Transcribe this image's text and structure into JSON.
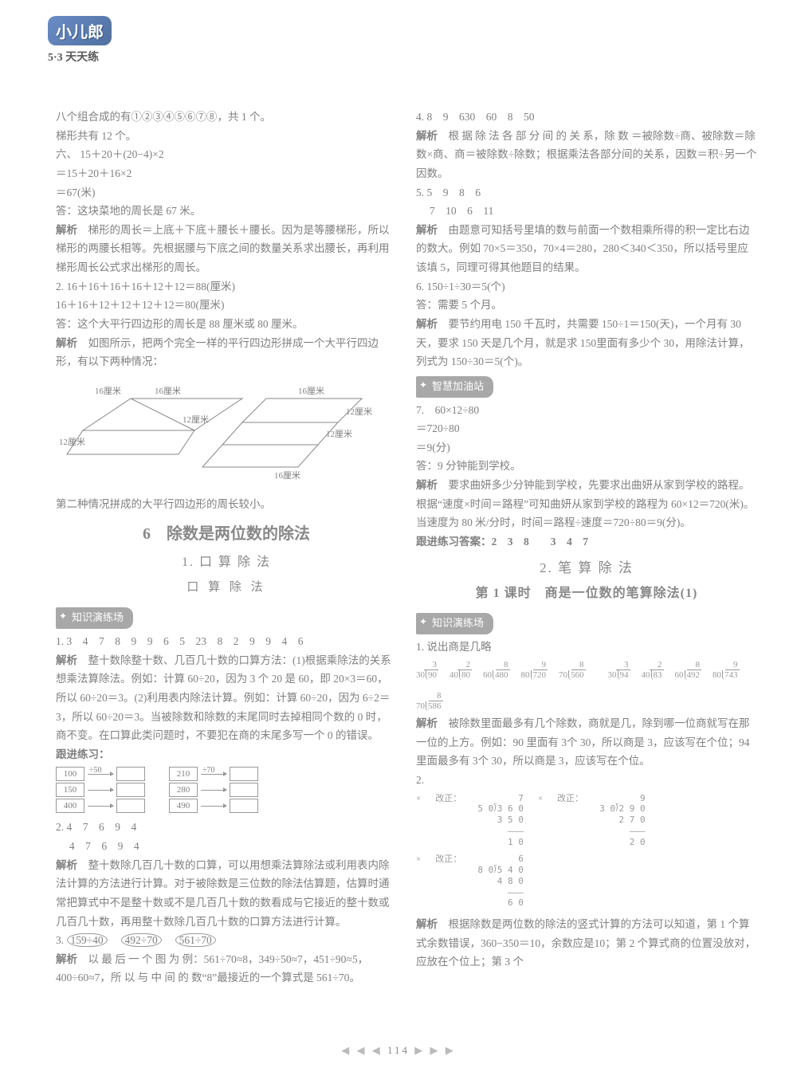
{
  "logo": {
    "brand": "小儿郎",
    "series": "5·3 天天练"
  },
  "left": {
    "p1": "八个组合成的有①②③④⑤⑥⑦⑧，共 1 个。",
    "p2": "梯形共有 12 个。",
    "six_label": "六、",
    "calc1": "15＋20＋(20−4)×2",
    "calc2": "＝15＋20＋16×2",
    "calc3": "＝67(米)",
    "ans1": "答：这块菜地的周长是 67 米。",
    "analyse1a": "解析",
    "analyse1b": "　梯形的周长＝上底＋下底＋腰长＋腰长。因为是等腰梯形，所以梯形的两腰长相等。先根据腰与下底之间的数量关系求出腰长，再利用梯形周长公式求出梯形的周长。",
    "calc4": "2. 16＋16＋16＋16＋12＋12＝88(厘米)",
    "calc5": "16＋16＋12＋12＋12＋12＝80(厘米)",
    "ans2": "答：这个大平行四边形的周长是 88 厘米或 80 厘米。",
    "analyse2a": "解析",
    "analyse2b": "　如图所示，把两个完全一样的平行四边形拼成一个大平行四边形，有以下两种情况：",
    "diag_labels": {
      "a": "16厘米",
      "b": "12厘米"
    },
    "p_after_diag": "第二种情况拼成的大平行四边形的周长较小。",
    "sec6_num": "6",
    "sec6_title": "除数是两位数的除法",
    "sec6_sub1": "1. 口 算 除 法",
    "sec6_sub2": "口 算 除 法",
    "tag1": "知识演练场",
    "q1": "1. 3　4　7　8　9　9　6　5　23　8　2　9　9　4　6",
    "a1a": "解析",
    "a1b": "　整十数除整十数、几百几十数的口算方法：(1)根据乘除法的关系想乘法算除法。例如：计算 60÷20，因为 3 个 20 是 60，即 20×3＝60，所以 60÷20＝3。(2)利用表内除法计算。例如：计算 60÷20，因为 6÷2＝3，所以 60÷20＝3。当被除数和除数的末尾同时去掉相同个数的 0 时，商不变。在口算此类问题时，不要犯在商的末尾多写一个 0 的错误。",
    "follow": "跟进练习：",
    "flow": {
      "div1": "÷50",
      "div2": "÷70",
      "l": [
        "100",
        "150",
        "400"
      ],
      "r": [
        "210",
        "280",
        "490"
      ]
    },
    "q2a": "2. 4　7　6　9　4",
    "q2b": "　 4　7　6　9　4",
    "a2a": "解析",
    "a2b": "　整十数除几百几十数的口算，可以用想乘法算除法或利用表内除法计算的方法进行计算。对于被除数是三位数的除法估算题，估算时通常把算式中不是整十数或不是几百几十数的数看成与它接近的整十数或几百几十数，再用整十数除几百几十数的口算方法进行计算。",
    "q3": "3. ",
    "q3_items": [
      "159÷40",
      "492÷70",
      "561÷70"
    ],
    "a3a": "解析",
    "a3b": "　以 最 后 一 个 图 为 例：561÷70≈8，349÷50≈7，451÷90≈5，400÷60≈7，所 以 与 中 间 的 数“8”最接近的一个算式是 561÷70。"
  },
  "right": {
    "q4": "4. 8　9　630　60　8　50",
    "a4a": "解析",
    "a4b": "　根 据 除 法 各 部 分 间 的 关 系，除 数 ＝被除数÷商、被除数＝除数×商、商＝被除数÷除数；根据乘法各部分间的关系，因数＝积÷另一个因数。",
    "q5a": "5. 5　9　8　6",
    "q5b": "　 7　10　6　11",
    "a5a": "解析",
    "a5b": "　由题意可知括号里填的数与前面一个数相乘所得的积一定比右边的数大。例如 70×5＝350，70×4＝280，280＜340＜350，所以括号里应该填 5，同理可得其他题目的结果。",
    "q6a": "6. 150÷1÷30＝5(个)",
    "q6b": "答：需要 5 个月。",
    "a6a": "解析",
    "a6b": "　要节约用电 150 千瓦时，共需要 150÷1＝150(天)，一个月有 30 天，要求 150 天是几个月，就是求 150里面有多少个 30，用除法计算，列式为 150÷30＝5(个)。",
    "tag2": "智慧加油站",
    "q7a": "7.　60×12÷80",
    "q7b": "＝720÷80",
    "q7c": "＝9(分)",
    "q7d": "答：9 分钟能到学校。",
    "a7a": "解析",
    "a7b": "　要求曲妍多少分钟能到学校，先要求出曲妍从家到学校的路程。根据“速度×时间＝路程”可知曲妍从家到学校的路程为 60×12＝720(米)。当速度为 80 米/分时，时间＝路程÷速度＝720÷80＝9(分)。",
    "followans": "跟进练习答案：2　3　8　　3　4　7",
    "sec_sub2": "2. 笔 算 除 法",
    "lesson": "第 1 课时　商是一位数的笔算除法(1)",
    "tag3": "知识演练场",
    "q1r": "1. 说出商是几略",
    "ldivs": [
      {
        "dvs": "30",
        "dvd": "90",
        "q": "3"
      },
      {
        "dvs": "40",
        "dvd": "80",
        "q": "2"
      },
      {
        "dvs": "60",
        "dvd": "480",
        "q": "8"
      },
      {
        "dvs": "80",
        "dvd": "720",
        "q": "9"
      },
      {
        "dvs": "70",
        "dvd": "560",
        "q": "8"
      },
      {
        "dvs": "30",
        "dvd": "94",
        "q": "3"
      },
      {
        "dvs": "40",
        "dvd": "83",
        "q": "2"
      },
      {
        "dvs": "60",
        "dvd": "492",
        "q": "8"
      },
      {
        "dvs": "80",
        "dvd": "743",
        "q": "9"
      },
      {
        "dvs": "70",
        "dvd": "586",
        "q": "8"
      }
    ],
    "a1ra": "解析",
    "a1rb": "　被除数里面最多有几个除数，商就是几，除到哪一位商就写在那一位的上方。例如：90 里面有 3个 30，所以商是 3，应该写在个位；94 里面最多有 3个 30，所以商是 3，应该写在个位。",
    "q2r": "2.",
    "corr": {
      "x": "×",
      "label": "改正：",
      "c1": "5 0⟌3 6 0\n    3 5 0\n    ———\n     1 0",
      "c1q": "7",
      "c2": "3 0⟌2 9 0\n    2 7 0\n    ———\n     2 0",
      "c2q": "9",
      "c3": "8 0⟌5 4 0\n    4 8 0\n    ———\n     6 0",
      "c3q": "6"
    },
    "a2ra": "解析",
    "a2rb": "　根据除数是两位数的除法的竖式计算的方法可以知道，第 1 个算式余数错误，360−350＝10，余数应是10；第 2 个算式商的位置没放对，应放在个位上；第 3 个"
  },
  "page": "114"
}
